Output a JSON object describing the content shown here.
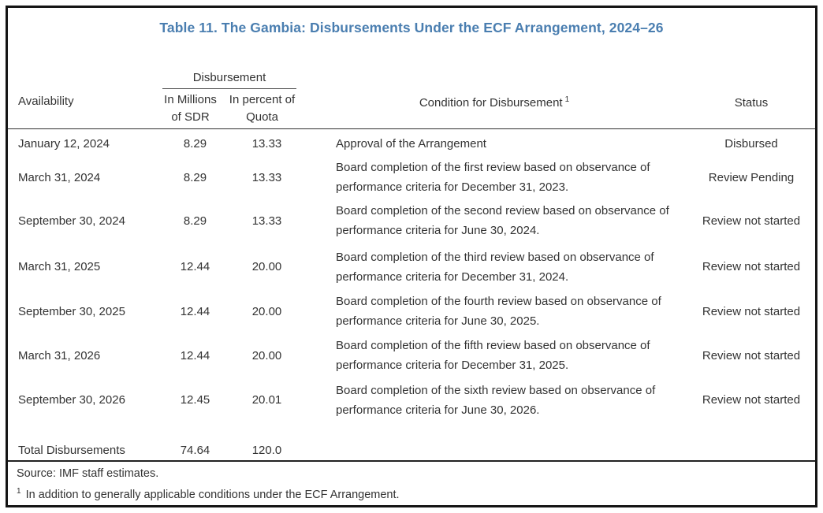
{
  "title": "Table 11. The Gambia: Disbursements Under the ECF Arrangement, 2024–26",
  "colors": {
    "title_blue": "#4a7eb0",
    "text": "#333333",
    "border": "#141414"
  },
  "table": {
    "group_header": "Disbursement",
    "columns": {
      "availability": "Availability",
      "sdr_line1": "In Millions",
      "sdr_line2": "of SDR",
      "quota_line1": "In percent of",
      "quota_line2": "Quota",
      "condition": "Condition for Disbursement",
      "condition_footnote_mark": "1",
      "status": "Status"
    },
    "rows": [
      {
        "availability": "January 12, 2024",
        "sdr": "8.29",
        "quota": "13.33",
        "condition": "Approval of the Arrangement",
        "status": "Disbursed"
      },
      {
        "availability": "March 31, 2024",
        "sdr": "8.29",
        "quota": "13.33",
        "condition": "Board completion of the first review based on observance of performance criteria for December 31, 2023.",
        "status": "Review Pending"
      },
      {
        "availability": "September 30, 2024",
        "sdr": "8.29",
        "quota": "13.33",
        "condition": "Board completion of the second review based on observance of performance criteria for June 30, 2024.",
        "status": "Review not started"
      },
      {
        "availability": "March 31, 2025",
        "sdr": "12.44",
        "quota": "20.00",
        "condition": "Board completion of the third review based on observance of performance criteria for December 31, 2024.",
        "status": "Review not started"
      },
      {
        "availability": "September 30, 2025",
        "sdr": "12.44",
        "quota": "20.00",
        "condition": "Board completion of the fourth review based on observance of performance criteria for June 30, 2025.",
        "status": "Review not started"
      },
      {
        "availability": "March 31, 2026",
        "sdr": "12.44",
        "quota": "20.00",
        "condition": "Board completion of the fifth review based on observance of performance criteria for December 31, 2025.",
        "status": "Review not started"
      },
      {
        "availability": "September 30, 2026",
        "sdr": "12.45",
        "quota": "20.01",
        "condition": "Board completion of the sixth review based on observance of performance criteria for June 30, 2026.",
        "status": "Review not started"
      }
    ],
    "total": {
      "label": "Total Disbursements",
      "sdr": "74.64",
      "quota": "120.0"
    }
  },
  "footer": {
    "source": "Source: IMF staff estimates.",
    "footnote_mark": "1",
    "footnote": "In addition to generally applicable conditions under the ECF Arrangement."
  }
}
